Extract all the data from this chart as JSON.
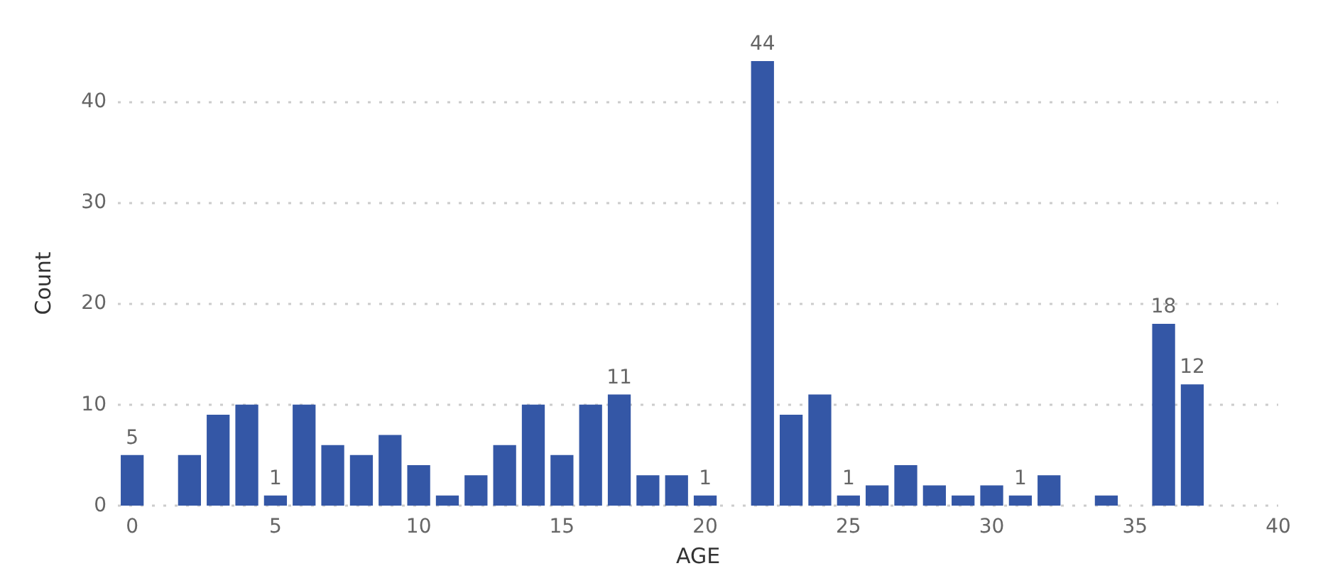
{
  "chart_data": {
    "type": "bar",
    "xlabel": "AGE",
    "ylabel": "Count",
    "color": "#3457a6",
    "x": [
      0,
      1,
      2,
      3,
      4,
      5,
      6,
      7,
      8,
      9,
      10,
      11,
      12,
      13,
      14,
      15,
      16,
      17,
      18,
      19,
      20,
      21,
      22,
      23,
      24,
      25,
      26,
      27,
      28,
      29,
      30,
      31,
      32,
      33,
      34,
      35,
      36,
      37
    ],
    "values": [
      5,
      null,
      5,
      9,
      10,
      1,
      10,
      6,
      5,
      7,
      4,
      1,
      3,
      6,
      10,
      5,
      10,
      11,
      3,
      3,
      1,
      null,
      44,
      9,
      11,
      1,
      2,
      4,
      2,
      1,
      2,
      1,
      3,
      null,
      1,
      null,
      18,
      12
    ],
    "value_labels": [
      "5",
      null,
      null,
      null,
      null,
      "1",
      null,
      null,
      null,
      null,
      null,
      null,
      null,
      null,
      null,
      null,
      null,
      "11",
      null,
      null,
      "1",
      null,
      "44",
      null,
      null,
      "1",
      null,
      null,
      null,
      null,
      null,
      "1",
      null,
      null,
      null,
      null,
      "18",
      "12"
    ],
    "xlim": [
      -0.5,
      40
    ],
    "xticks": [
      0,
      5,
      10,
      15,
      20,
      25,
      30,
      35,
      40
    ],
    "ylim": [
      0,
      44
    ],
    "yticks": [
      0,
      10,
      20,
      30,
      40
    ],
    "grid": "y"
  }
}
